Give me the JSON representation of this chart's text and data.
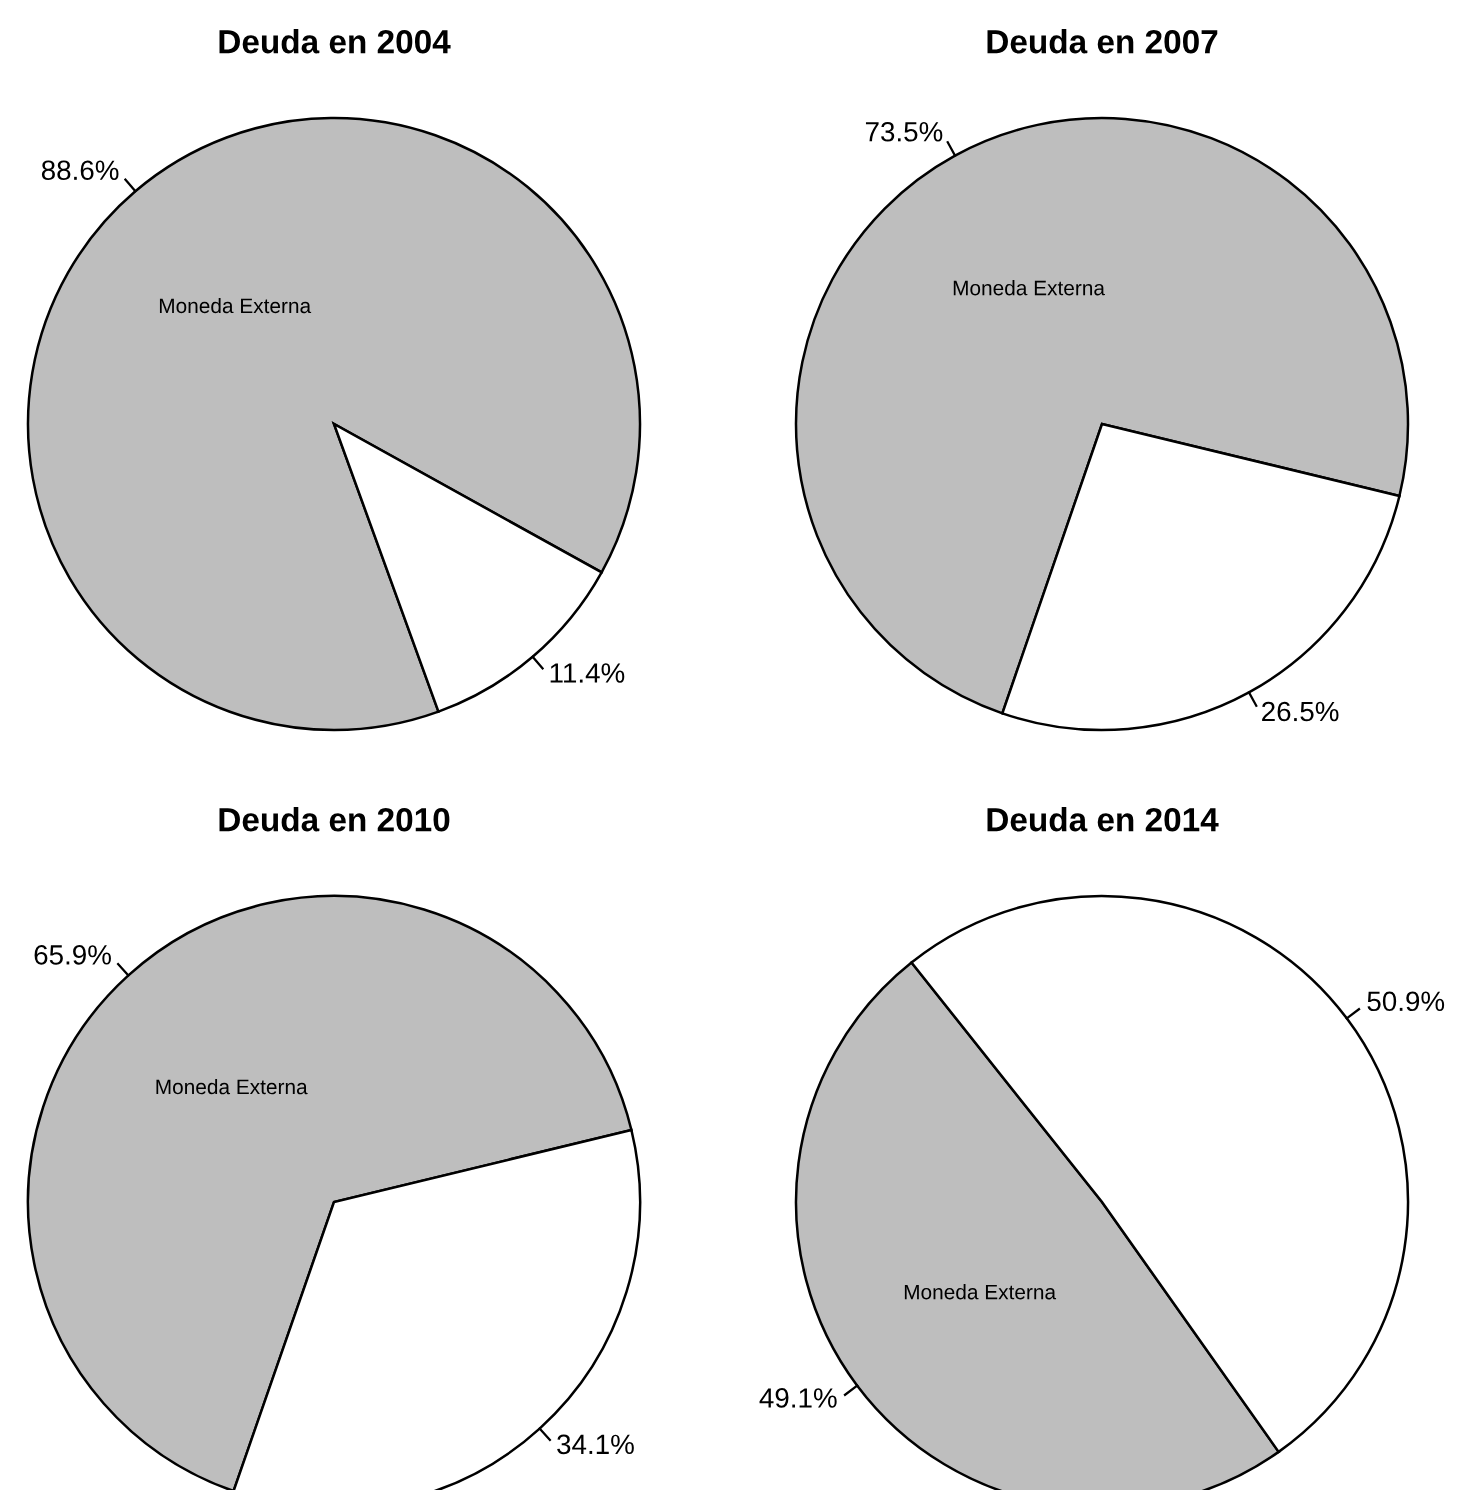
{
  "chart_data": [
    {
      "type": "pie",
      "title": "Deuda en 2004",
      "categories": [
        "Moneda Externa",
        null
      ],
      "values": [
        88.6,
        11.4
      ],
      "colors": [
        "#bebebe",
        "#ffffff"
      ],
      "value_labels": [
        "88.6%",
        "11.4%"
      ]
    },
    {
      "type": "pie",
      "title": "Deuda en 2007",
      "categories": [
        "Moneda Externa",
        null
      ],
      "values": [
        73.5,
        26.5
      ],
      "colors": [
        "#bebebe",
        "#ffffff"
      ],
      "value_labels": [
        "73.5%",
        "26.5%"
      ]
    },
    {
      "type": "pie",
      "title": "Deuda en 2010",
      "categories": [
        "Moneda Externa",
        null
      ],
      "values": [
        65.9,
        34.1
      ],
      "colors": [
        "#bebebe",
        "#ffffff"
      ],
      "value_labels": [
        "65.9%",
        "34.1%"
      ]
    },
    {
      "type": "pie",
      "title": "Deuda en 2014",
      "categories": [
        "Moneda Externa",
        null
      ],
      "values": [
        49.1,
        50.9
      ],
      "colors": [
        "#bebebe",
        "#ffffff"
      ],
      "value_labels": [
        "49.1%",
        "50.9%"
      ]
    }
  ]
}
